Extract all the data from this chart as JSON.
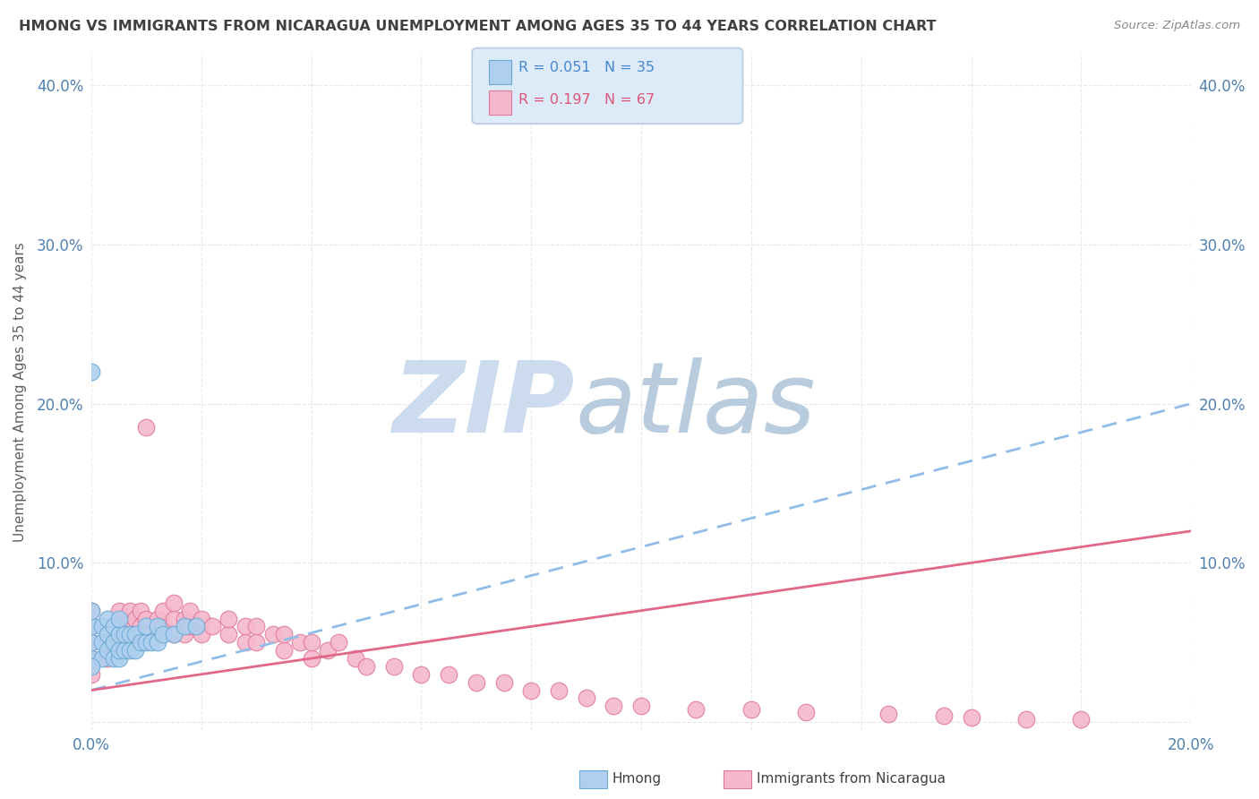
{
  "title": "HMONG VS IMMIGRANTS FROM NICARAGUA UNEMPLOYMENT AMONG AGES 35 TO 44 YEARS CORRELATION CHART",
  "source": "Source: ZipAtlas.com",
  "ylabel": "Unemployment Among Ages 35 to 44 years",
  "xlim": [
    0.0,
    0.2
  ],
  "ylim": [
    -0.005,
    0.42
  ],
  "x_ticks": [
    0.0,
    0.02,
    0.04,
    0.06,
    0.08,
    0.1,
    0.12,
    0.14,
    0.16,
    0.18,
    0.2
  ],
  "y_ticks": [
    0.0,
    0.1,
    0.2,
    0.3,
    0.4
  ],
  "hmong_R": 0.051,
  "hmong_N": 35,
  "nicaragua_R": 0.197,
  "nicaragua_N": 67,
  "hmong_color": "#aecfee",
  "hmong_edge_color": "#6aaad4",
  "nicaragua_color": "#f5b8cc",
  "nicaragua_edge_color": "#e07898",
  "hmong_trend_color": "#90bce8",
  "nicaragua_trend_color": "#e06888",
  "background_color": "#ffffff",
  "grid_color": "#e8e8e8",
  "title_color": "#404040",
  "legend_box_color": "#ddeaf8",
  "legend_border_color": "#b8cce0",
  "hmong_x": [
    0.0,
    0.0,
    0.0,
    0.0,
    0.0,
    0.002,
    0.002,
    0.002,
    0.003,
    0.003,
    0.003,
    0.004,
    0.004,
    0.004,
    0.005,
    0.005,
    0.005,
    0.005,
    0.006,
    0.006,
    0.007,
    0.007,
    0.008,
    0.008,
    0.009,
    0.01,
    0.01,
    0.011,
    0.012,
    0.012,
    0.013,
    0.015,
    0.017,
    0.019,
    0.0
  ],
  "hmong_y": [
    0.04,
    0.05,
    0.06,
    0.07,
    0.22,
    0.04,
    0.05,
    0.06,
    0.045,
    0.055,
    0.065,
    0.04,
    0.05,
    0.06,
    0.04,
    0.045,
    0.055,
    0.065,
    0.045,
    0.055,
    0.045,
    0.055,
    0.045,
    0.055,
    0.05,
    0.05,
    0.06,
    0.05,
    0.05,
    0.06,
    0.055,
    0.055,
    0.06,
    0.06,
    0.035
  ],
  "nicaragua_x": [
    0.0,
    0.0,
    0.0,
    0.0,
    0.0,
    0.003,
    0.003,
    0.005,
    0.005,
    0.005,
    0.007,
    0.007,
    0.008,
    0.008,
    0.009,
    0.009,
    0.01,
    0.01,
    0.01,
    0.012,
    0.012,
    0.013,
    0.013,
    0.015,
    0.015,
    0.015,
    0.017,
    0.017,
    0.018,
    0.018,
    0.02,
    0.02,
    0.022,
    0.025,
    0.025,
    0.028,
    0.028,
    0.03,
    0.03,
    0.033,
    0.035,
    0.035,
    0.038,
    0.04,
    0.04,
    0.043,
    0.045,
    0.048,
    0.05,
    0.055,
    0.06,
    0.065,
    0.07,
    0.075,
    0.08,
    0.085,
    0.09,
    0.095,
    0.1,
    0.11,
    0.12,
    0.13,
    0.145,
    0.155,
    0.16,
    0.17,
    0.18
  ],
  "nicaragua_y": [
    0.03,
    0.04,
    0.05,
    0.06,
    0.07,
    0.04,
    0.05,
    0.05,
    0.06,
    0.07,
    0.06,
    0.07,
    0.055,
    0.065,
    0.06,
    0.07,
    0.055,
    0.065,
    0.185,
    0.055,
    0.065,
    0.06,
    0.07,
    0.055,
    0.065,
    0.075,
    0.055,
    0.065,
    0.06,
    0.07,
    0.055,
    0.065,
    0.06,
    0.055,
    0.065,
    0.05,
    0.06,
    0.05,
    0.06,
    0.055,
    0.045,
    0.055,
    0.05,
    0.04,
    0.05,
    0.045,
    0.05,
    0.04,
    0.035,
    0.035,
    0.03,
    0.03,
    0.025,
    0.025,
    0.02,
    0.02,
    0.015,
    0.01,
    0.01,
    0.008,
    0.008,
    0.006,
    0.005,
    0.004,
    0.003,
    0.002,
    0.002
  ]
}
